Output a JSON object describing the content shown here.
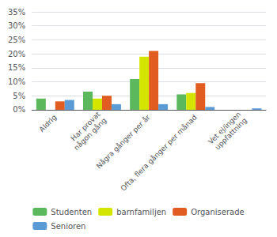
{
  "chart_data": {
    "type": "bar",
    "categories": [
      "Aldrig",
      "Har provat\nnågon gång",
      "Några gånger per år",
      "Ofta, flera gånger per månad",
      "Vet ej/ingen\nuppfattning"
    ],
    "series": [
      {
        "name": "Studenten",
        "color": "#5cb85c",
        "values": [
          4.0,
          6.5,
          11.0,
          5.5,
          0.0
        ]
      },
      {
        "name": "barnfamiljen",
        "color": "#d4e600",
        "values": [
          0.0,
          4.0,
          19.0,
          6.0,
          0.0
        ]
      },
      {
        "name": "Organiserade",
        "color": "#e05c20",
        "values": [
          3.0,
          5.0,
          21.0,
          9.5,
          0.0
        ]
      },
      {
        "name": "Senioren",
        "color": "#5b9bd5",
        "values": [
          3.5,
          2.0,
          2.0,
          1.0,
          0.5
        ]
      }
    ],
    "ylim": [
      0,
      35
    ],
    "yticks": [
      {
        "value": 0,
        "label": "0%"
      },
      {
        "value": 5,
        "label": "5%"
      },
      {
        "value": 10,
        "label": "10%"
      },
      {
        "value": 15,
        "label": "15%"
      },
      {
        "value": 20,
        "label": "20%"
      },
      {
        "value": 25,
        "label": "25%"
      },
      {
        "value": 30,
        "label": "30%"
      },
      {
        "value": 35,
        "label": "35%"
      }
    ],
    "grid": true,
    "legend": "bottom"
  }
}
